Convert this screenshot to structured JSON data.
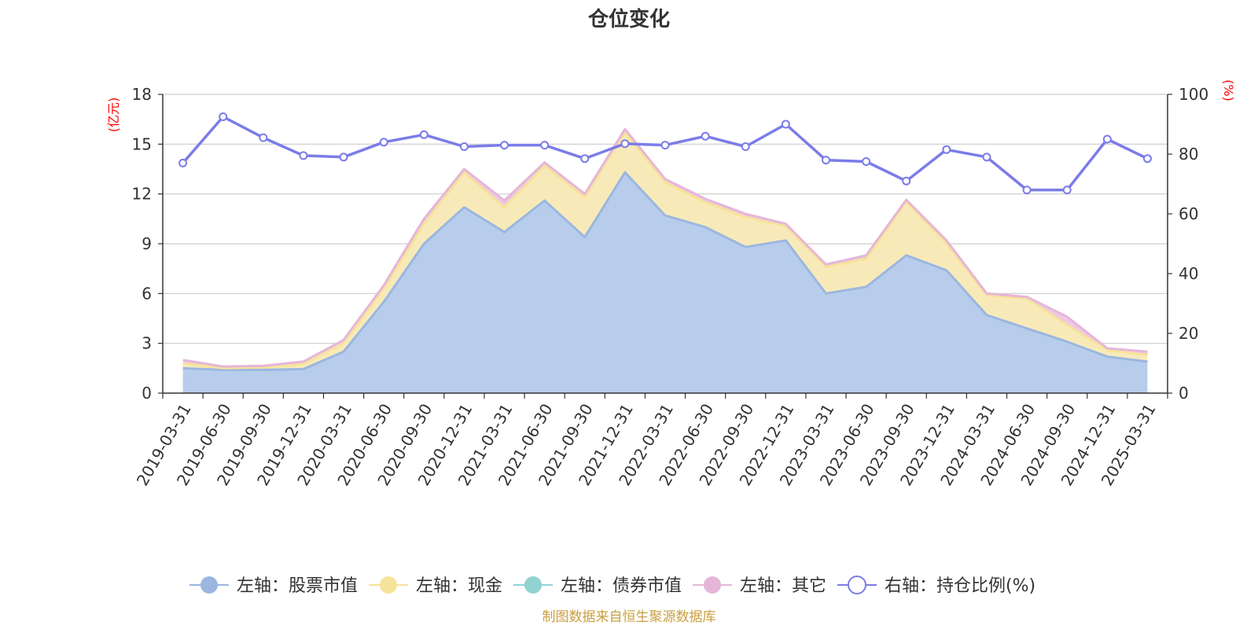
{
  "chart_data": {
    "type": "area",
    "title": "仓位变化",
    "y_left_label": "(亿元)",
    "y_right_label": "(%)",
    "y_left_lim": [
      0,
      18
    ],
    "y_left_ticks": [
      0,
      3,
      6,
      9,
      12,
      15,
      18
    ],
    "y_right_lim": [
      0,
      100
    ],
    "y_right_ticks": [
      0,
      20,
      40,
      60,
      80,
      100
    ],
    "grid": true,
    "legend_position": "bottom",
    "categories": [
      "2019-03-31",
      "2019-06-30",
      "2019-09-30",
      "2019-12-31",
      "2020-03-31",
      "2020-06-30",
      "2020-09-30",
      "2020-12-31",
      "2021-03-31",
      "2021-06-30",
      "2021-09-30",
      "2021-12-31",
      "2022-03-31",
      "2022-06-30",
      "2022-09-30",
      "2022-12-31",
      "2023-03-31",
      "2023-06-30",
      "2023-09-30",
      "2023-12-31",
      "2024-03-31",
      "2024-06-30",
      "2024-09-30",
      "2024-12-31",
      "2025-03-31"
    ],
    "series": [
      {
        "name": "左轴：股票市值",
        "axis": "left",
        "kind": "stacked-area",
        "color": "#9bb7e0",
        "fill": "#b8cdeb",
        "values": [
          1.5,
          1.4,
          1.4,
          1.45,
          2.5,
          5.5,
          9.0,
          11.2,
          9.7,
          11.6,
          9.4,
          13.3,
          10.7,
          10.0,
          8.8,
          9.2,
          6.0,
          6.4,
          8.3,
          7.4,
          4.7,
          3.9,
          3.1,
          2.2,
          1.9
        ]
      },
      {
        "name": "左轴：现金",
        "axis": "left",
        "kind": "stacked-area",
        "color": "#f5e39a",
        "fill": "#f8eab8",
        "values": [
          0.3,
          0.1,
          0.15,
          0.3,
          0.5,
          0.8,
          1.2,
          2.1,
          1.5,
          2.1,
          2.4,
          2.4,
          2.0,
          1.5,
          1.8,
          0.85,
          1.6,
          1.7,
          3.2,
          1.6,
          1.2,
          1.8,
          1.0,
          0.4,
          0.4
        ]
      },
      {
        "name": "左轴：债券市值",
        "axis": "left",
        "kind": "stacked-area",
        "color": "#93d2d2",
        "fill": "#a8dcdc",
        "values": [
          0,
          0,
          0,
          0,
          0,
          0,
          0,
          0,
          0,
          0,
          0,
          0,
          0,
          0,
          0,
          0,
          0,
          0,
          0,
          0,
          0,
          0,
          0,
          0,
          0
        ]
      },
      {
        "name": "左轴：其它",
        "axis": "left",
        "kind": "stacked-area",
        "color": "#e6b6d8",
        "fill": "#efc8e4",
        "values": [
          0.2,
          0.1,
          0.1,
          0.15,
          0.2,
          0.2,
          0.3,
          0.2,
          0.4,
          0.2,
          0.2,
          0.2,
          0.2,
          0.2,
          0.2,
          0.15,
          0.15,
          0.2,
          0.15,
          0.2,
          0.1,
          0.1,
          0.5,
          0.1,
          0.2
        ]
      },
      {
        "name": "右轴：持仓比例(%)",
        "axis": "right",
        "kind": "line",
        "color": "#7b7ce8",
        "values": [
          77,
          92.5,
          85.5,
          79.5,
          79,
          84,
          86.5,
          82.5,
          83,
          83,
          78.5,
          83.5,
          83,
          86,
          82.5,
          90,
          78,
          77.5,
          71,
          81.5,
          79,
          68,
          68,
          85,
          78.5
        ]
      }
    ]
  },
  "footer": {
    "source_text": "制图数据来自恒生聚源数据库",
    "source_color": "#c8a040"
  },
  "colors": {
    "axis": "#333333",
    "grid": "#cccccc",
    "unit_label": "#ff0000"
  }
}
